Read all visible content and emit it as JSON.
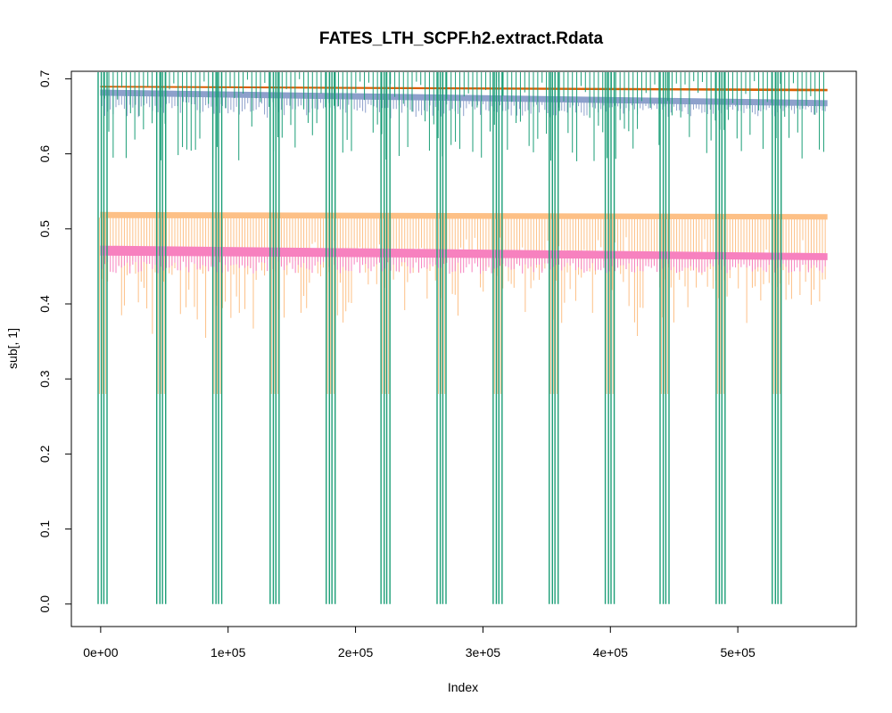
{
  "chart_data": {
    "type": "line",
    "title": "FATES_LTH_SCPF.h2.extract.Rdata",
    "xlabel": "Index",
    "ylabel": "sub[, 1]",
    "xlim": [
      -23000,
      593000
    ],
    "ylim": [
      -0.03,
      0.71
    ],
    "x_ticks": [
      0,
      100000,
      200000,
      300000,
      400000,
      500000
    ],
    "x_tick_labels": [
      "0e+00",
      "1e+05",
      "2e+05",
      "3e+05",
      "4e+05",
      "5e+05"
    ],
    "y_ticks": [
      0.0,
      0.1,
      0.2,
      0.3,
      0.4,
      0.5,
      0.6,
      0.7
    ],
    "y_tick_labels": [
      "0.0",
      "0.1",
      "0.2",
      "0.3",
      "0.4",
      "0.5",
      "0.6",
      "0.7"
    ],
    "x_max": 570000,
    "grid": false,
    "legend": "none",
    "series": [
      {
        "color": "#D95F02",
        "style": "band",
        "start": 0.69,
        "end": 0.686,
        "lower": [
          0.689,
          0.684
        ],
        "dips": []
      },
      {
        "color": "#8DA0CB",
        "style": "band",
        "start": 0.685,
        "end": 0.671,
        "lower": [
          0.678,
          0.664
        ],
        "dips": [
          0.66,
          0.645
        ]
      },
      {
        "color": "#FDC086",
        "style": "band",
        "start": 0.522,
        "end": 0.519,
        "lower": [
          0.515,
          0.513
        ],
        "dips": [
          0.44,
          0.35
        ],
        "deep": 0.28
      },
      {
        "color": "#F781BF",
        "style": "band",
        "start": 0.477,
        "end": 0.467,
        "lower": [
          0.465,
          0.459
        ],
        "dips": [
          0.44,
          0.44
        ]
      },
      {
        "color": "#1B9E77",
        "style": "spikes",
        "top": 0.71,
        "zero_clusters_x": [
          1500,
          47500,
          91500,
          136500,
          180500,
          223500,
          267500,
          311500,
          355500,
          399500,
          442500,
          486500,
          530500
        ],
        "partial_dip_range": [
          0.59,
          0.7
        ]
      }
    ]
  }
}
